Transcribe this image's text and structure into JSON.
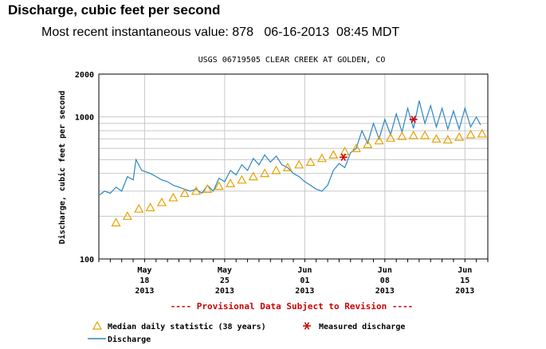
{
  "header": {
    "title": "Discharge, cubic feet per second",
    "recent_label": "Most recent instantaneous value:",
    "recent_value": "878",
    "recent_date": "06-16-2013",
    "recent_time": "08:45 MDT"
  },
  "chart_data": {
    "type": "line",
    "title": "USGS 06719505 CLEAR CREEK AT GOLDEN, CO",
    "ylabel": "Discharge, cubic feet per second",
    "xlabel": "",
    "yscale": "log",
    "ylim": [
      100,
      2000
    ],
    "xlim": [
      "2013-05-14",
      "2013-06-17"
    ],
    "grid": true,
    "y_tick_labels": [
      "100",
      "1000",
      "2000"
    ],
    "x_ticks": [
      {
        "date": "2013-05-18",
        "month": "May",
        "day": "18",
        "year": "2013"
      },
      {
        "date": "2013-05-25",
        "month": "May",
        "day": "25",
        "year": "2013"
      },
      {
        "date": "2013-06-01",
        "month": "Jun",
        "day": "01",
        "year": "2013"
      },
      {
        "date": "2013-06-08",
        "month": "Jun",
        "day": "08",
        "year": "2013"
      },
      {
        "date": "2013-06-15",
        "month": "Jun",
        "day": "15",
        "year": "2013"
      }
    ],
    "provisional_note": "---- Provisional Data Subject to Revision ----",
    "series": [
      {
        "name": "Discharge",
        "color": "#2e86c1",
        "points": [
          [
            "2013-05-14T00:00",
            280
          ],
          [
            "2013-05-14T12:00",
            300
          ],
          [
            "2013-05-15T00:00",
            290
          ],
          [
            "2013-05-15T12:00",
            320
          ],
          [
            "2013-05-16T00:00",
            300
          ],
          [
            "2013-05-16T12:00",
            380
          ],
          [
            "2013-05-17T00:00",
            360
          ],
          [
            "2013-05-17T06:00",
            500
          ],
          [
            "2013-05-17T18:00",
            420
          ],
          [
            "2013-05-18T12:00",
            400
          ],
          [
            "2013-05-19T00:00",
            380
          ],
          [
            "2013-05-19T12:00",
            360
          ],
          [
            "2013-05-20T00:00",
            350
          ],
          [
            "2013-05-20T12:00",
            330
          ],
          [
            "2013-05-21T00:00",
            320
          ],
          [
            "2013-05-21T12:00",
            310
          ],
          [
            "2013-05-22T00:00",
            300
          ],
          [
            "2013-05-22T12:00",
            310
          ],
          [
            "2013-05-23T00:00",
            290
          ],
          [
            "2013-05-23T12:00",
            330
          ],
          [
            "2013-05-24T00:00",
            300
          ],
          [
            "2013-05-24T12:00",
            370
          ],
          [
            "2013-05-25T00:00",
            350
          ],
          [
            "2013-05-25T12:00",
            420
          ],
          [
            "2013-05-26T00:00",
            390
          ],
          [
            "2013-05-26T12:00",
            460
          ],
          [
            "2013-05-27T00:00",
            420
          ],
          [
            "2013-05-27T12:00",
            510
          ],
          [
            "2013-05-28T00:00",
            460
          ],
          [
            "2013-05-28T12:00",
            540
          ],
          [
            "2013-05-29T00:00",
            480
          ],
          [
            "2013-05-29T12:00",
            530
          ],
          [
            "2013-05-30T00:00",
            460
          ],
          [
            "2013-05-30T12:00",
            440
          ],
          [
            "2013-05-31T00:00",
            400
          ],
          [
            "2013-05-31T12:00",
            380
          ],
          [
            "2013-06-01T00:00",
            350
          ],
          [
            "2013-06-01T12:00",
            330
          ],
          [
            "2013-06-02T00:00",
            310
          ],
          [
            "2013-06-02T12:00",
            300
          ],
          [
            "2013-06-03T00:00",
            330
          ],
          [
            "2013-06-03T12:00",
            420
          ],
          [
            "2013-06-04T00:00",
            470
          ],
          [
            "2013-06-04T12:00",
            440
          ],
          [
            "2013-06-05T00:00",
            560
          ],
          [
            "2013-06-05T12:00",
            600
          ],
          [
            "2013-06-06T00:00",
            800
          ],
          [
            "2013-06-06T12:00",
            650
          ],
          [
            "2013-06-07T00:00",
            900
          ],
          [
            "2013-06-07T12:00",
            700
          ],
          [
            "2013-06-08T00:00",
            960
          ],
          [
            "2013-06-08T12:00",
            750
          ],
          [
            "2013-06-09T00:00",
            1050
          ],
          [
            "2013-06-09T12:00",
            780
          ],
          [
            "2013-06-10T00:00",
            1150
          ],
          [
            "2013-06-10T12:00",
            830
          ],
          [
            "2013-06-11T00:00",
            1300
          ],
          [
            "2013-06-11T12:00",
            900
          ],
          [
            "2013-06-12T00:00",
            1200
          ],
          [
            "2013-06-12T12:00",
            850
          ],
          [
            "2013-06-13T00:00",
            1150
          ],
          [
            "2013-06-13T12:00",
            820
          ],
          [
            "2013-06-14T00:00",
            1100
          ],
          [
            "2013-06-14T12:00",
            820
          ],
          [
            "2013-06-15T00:00",
            1150
          ],
          [
            "2013-06-15T12:00",
            850
          ],
          [
            "2013-06-16T00:00",
            1000
          ],
          [
            "2013-06-16T08:45",
            878
          ]
        ]
      },
      {
        "name": "Median daily statistic (38 years)",
        "color": "#e6a100",
        "marker": "triangle",
        "points": [
          [
            "2013-05-15",
            180
          ],
          [
            "2013-05-16",
            200
          ],
          [
            "2013-05-17",
            225
          ],
          [
            "2013-05-18",
            230
          ],
          [
            "2013-05-19",
            250
          ],
          [
            "2013-05-20",
            270
          ],
          [
            "2013-05-21",
            290
          ],
          [
            "2013-05-22",
            300
          ],
          [
            "2013-05-23",
            310
          ],
          [
            "2013-05-24",
            325
          ],
          [
            "2013-05-25",
            340
          ],
          [
            "2013-05-26",
            360
          ],
          [
            "2013-05-27",
            380
          ],
          [
            "2013-05-28",
            400
          ],
          [
            "2013-05-29",
            420
          ],
          [
            "2013-05-30",
            440
          ],
          [
            "2013-05-31",
            460
          ],
          [
            "2013-06-01",
            480
          ],
          [
            "2013-06-02",
            510
          ],
          [
            "2013-06-03",
            540
          ],
          [
            "2013-06-04",
            570
          ],
          [
            "2013-06-05",
            600
          ],
          [
            "2013-06-06",
            640
          ],
          [
            "2013-06-07",
            680
          ],
          [
            "2013-06-08",
            710
          ],
          [
            "2013-06-09",
            730
          ],
          [
            "2013-06-10",
            740
          ],
          [
            "2013-06-11",
            740
          ],
          [
            "2013-06-12",
            700
          ],
          [
            "2013-06-13",
            690
          ],
          [
            "2013-06-14",
            720
          ],
          [
            "2013-06-15",
            750
          ],
          [
            "2013-06-16",
            760
          ]
        ]
      },
      {
        "name": "Measured discharge",
        "color": "#cc0000",
        "marker": "asterisk",
        "points": [
          [
            "2013-06-04T09:00",
            520
          ],
          [
            "2013-06-10T12:00",
            960
          ]
        ]
      }
    ]
  }
}
